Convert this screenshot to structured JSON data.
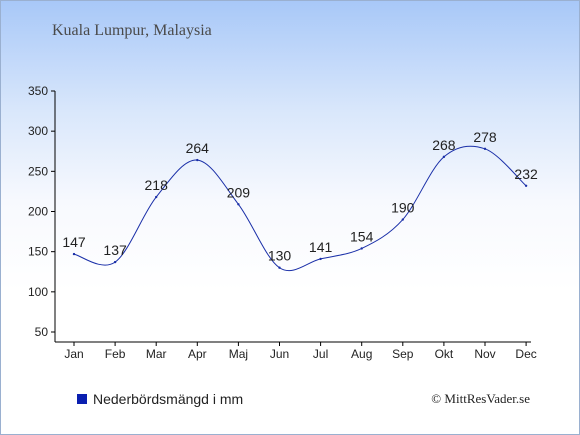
{
  "title": "Kuala Lumpur, Malaysia",
  "legend_label": "Nederbördsmängd i mm",
  "credit": "© MittResVader.se",
  "colors": {
    "line": "#1a2fa8",
    "swatch": "#0a1fb0",
    "axis": "#000000"
  },
  "chart_data": {
    "type": "line",
    "categories": [
      "Jan",
      "Feb",
      "Mar",
      "Apr",
      "Maj",
      "Jun",
      "Jul",
      "Aug",
      "Sep",
      "Okt",
      "Nov",
      "Dec"
    ],
    "series": [
      {
        "name": "Nederbördsmängd i mm",
        "values": [
          147,
          137,
          218,
          264,
          209,
          130,
          141,
          154,
          190,
          268,
          278,
          232
        ]
      }
    ],
    "ylim": [
      50,
      350
    ],
    "yticks": [
      50,
      100,
      150,
      200,
      250,
      300,
      350
    ],
    "xlabel": "",
    "ylabel": "",
    "grid": false,
    "legend_position": "bottom-left"
  }
}
